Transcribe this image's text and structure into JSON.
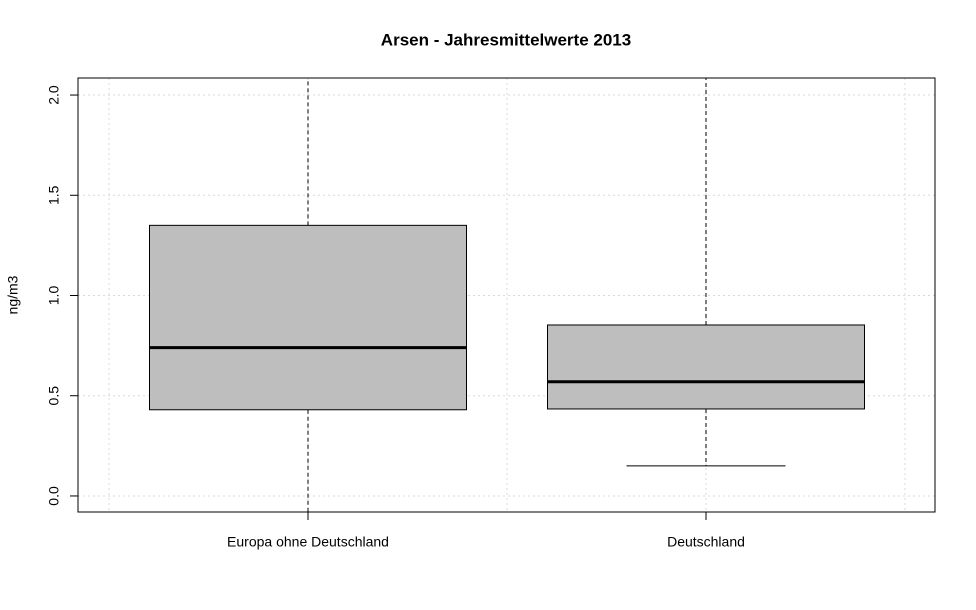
{
  "chart_data": {
    "type": "box",
    "title": "Arsen - Jahresmittelwerte 2013",
    "y_label": "ng/m3",
    "categories": [
      "Europa ohne Deutschland",
      "Deutschland"
    ],
    "boxes": [
      {
        "whisker_low": -0.08,
        "q1": 0.43,
        "median": 0.74,
        "q3": 1.35,
        "whisker_high": 2.085
      },
      {
        "whisker_low": 0.15,
        "q1": 0.434,
        "median": 0.57,
        "q3": 0.853,
        "whisker_high": 2.085
      }
    ],
    "color": "#bebebe",
    "ylim": [
      -0.08,
      2.085
    ],
    "yticks": [
      {
        "value": 0,
        "label": "0.0"
      },
      0.5,
      {
        "value": 1,
        "label": "1.0"
      },
      1.5,
      {
        "value": 2,
        "label": "2.0"
      }
    ],
    "grid": true
  }
}
